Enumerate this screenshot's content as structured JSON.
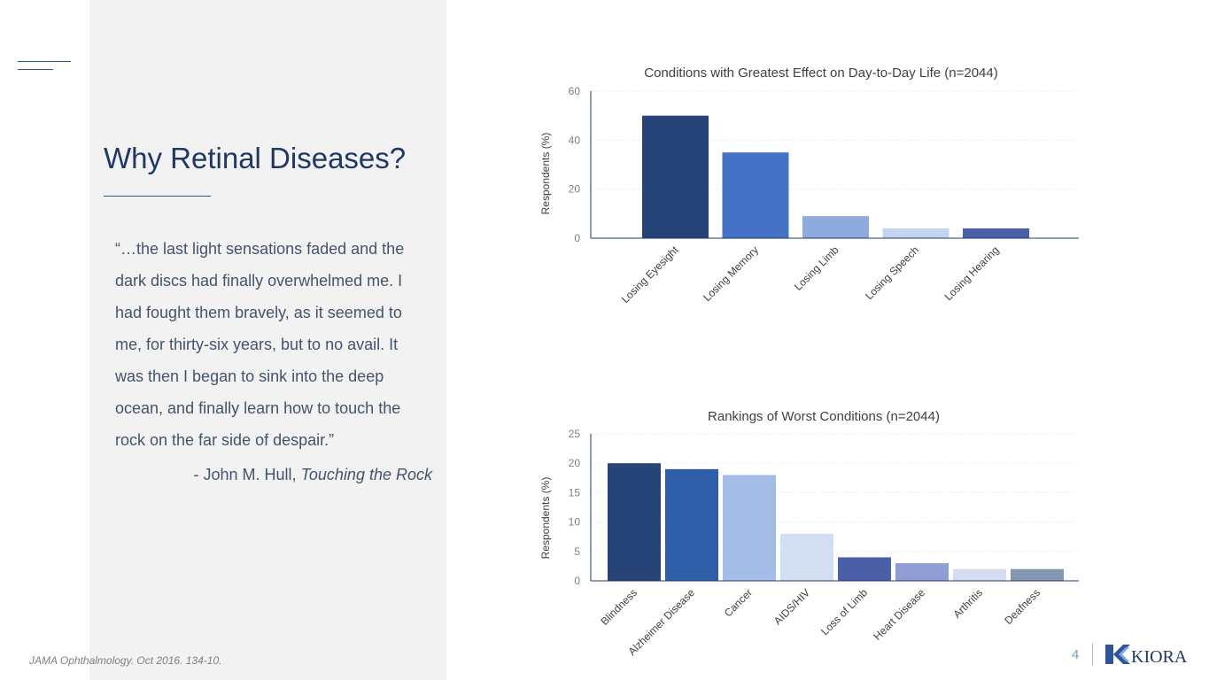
{
  "slide": {
    "title": "Why Retinal Diseases?",
    "quote_lines": [
      "“…the last light sensations faded and the",
      "dark discs had finally overwhelmed me. I",
      "had fought them bravely, as it seemed to",
      "me, for thirty-six years, but to no avail. It",
      "was then I began to sink into the deep",
      "ocean, and finally learn how to touch the",
      "rock on the far side of despair.”"
    ],
    "attribution_prefix": "- John M. Hull, ",
    "attribution_work": "Touching the Rock",
    "source": "JAMA Ophthalmology. Oct 2016. 134-10.",
    "page_number": "4",
    "logo_text": "KIORA",
    "colors": {
      "title": "#1f3864",
      "accent": "#2f5597",
      "panel": "#f2f2f2"
    }
  },
  "chart_data": [
    {
      "type": "bar",
      "title": "Conditions with Greatest Effect on Day-to-Day Life (n=2044)",
      "xlabel": "",
      "ylabel": "Respondents (%)",
      "categories": [
        "Losing Eyesight",
        "Losing Memory",
        "Losing Limb",
        "Losing Speech",
        "Losing Hearing"
      ],
      "values": [
        50,
        35,
        9,
        4,
        4
      ],
      "colors": [
        "#264478",
        "#4472c4",
        "#8faadc",
        "#c5d4ee",
        "#4a5fa8"
      ],
      "ylim": [
        0,
        60
      ],
      "yticks": [
        0,
        20,
        40,
        60
      ],
      "grid": true,
      "legend": "none"
    },
    {
      "type": "bar",
      "title": "Rankings of Worst Conditions (n=2044)",
      "xlabel": "",
      "ylabel": "Respondents (%)",
      "categories": [
        "Blindness",
        "Alzheimer Disease",
        "Cancer",
        "AIDS/HIV",
        "Loss of Limb",
        "Heart Disease",
        "Arthritis",
        "Deafness"
      ],
      "values": [
        20,
        19,
        18,
        8,
        4,
        3,
        2,
        2
      ],
      "colors": [
        "#264478",
        "#2e5ea8",
        "#a4bde6",
        "#d2def2",
        "#4a5fa8",
        "#8e9ed4",
        "#d6dcef",
        "#8496b0"
      ],
      "ylim": [
        0,
        25
      ],
      "yticks": [
        0,
        5,
        10,
        15,
        20,
        25
      ],
      "grid": true,
      "legend": "none"
    }
  ]
}
